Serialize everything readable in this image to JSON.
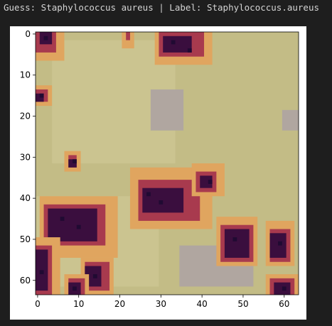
{
  "output": {
    "caption": "Guess: Staphylococcus aureus | Label: Staphylococcus.aureus"
  },
  "chart_data": {
    "type": "heatmap",
    "title": "",
    "xlabel": "",
    "ylabel": "",
    "xlim": [
      -0.5,
      63.5
    ],
    "ylim": [
      63.5,
      -0.5
    ],
    "x_ticks": [
      0,
      10,
      20,
      30,
      40,
      50,
      60
    ],
    "y_ticks": [
      0,
      10,
      20,
      30,
      40,
      50,
      60
    ],
    "grid": false,
    "image_size": [
      64,
      64
    ],
    "colors": {
      "background": "#c3bc86",
      "light_patch": "#cbc490",
      "halo_orange": "#e0a55f",
      "halo_yellow": "#d6c277",
      "mid_red": "#a83a4e",
      "dark_purple": "#3a0e3e",
      "darkest": "#200a32",
      "lavender": "#b0a6a0"
    }
  }
}
